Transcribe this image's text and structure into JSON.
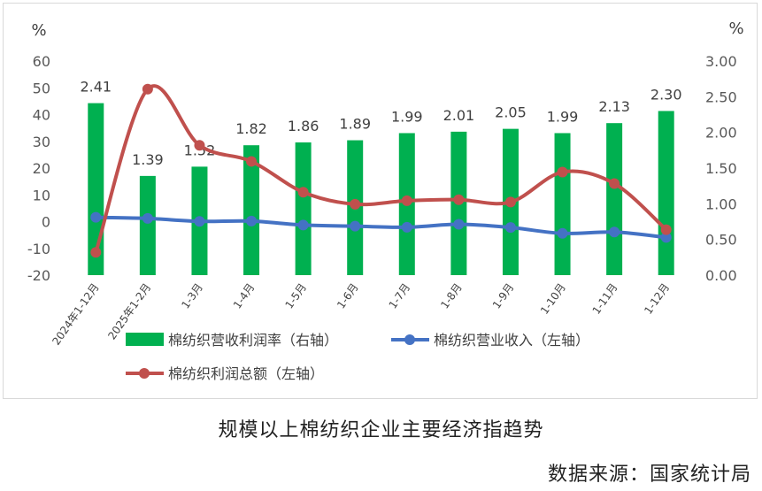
{
  "chart_data": {
    "type": "bar+line",
    "title": "",
    "categories": [
      "2024年1-12月",
      "2025年1-2月",
      "1-3月",
      "1-4月",
      "1-5月",
      "1-6月",
      "1-7月",
      "1-8月",
      "1-9月",
      "1-10月",
      "1-11月",
      "1-12月"
    ],
    "left_axis": {
      "unit": "%",
      "ylim": [
        -20,
        60
      ],
      "ticks": [
        "-20",
        "-10",
        "0",
        "10",
        "20",
        "30",
        "40",
        "50",
        "60"
      ]
    },
    "right_axis": {
      "unit": "%",
      "ylim": [
        0,
        3
      ],
      "ticks": [
        "0.00",
        "0.50",
        "1.00",
        "1.50",
        "2.00",
        "2.50",
        "3.00"
      ]
    },
    "series": [
      {
        "name": "棉纺织营收利润率（右轴）",
        "type": "bar",
        "axis": "right",
        "color": "#00b050",
        "values": [
          2.41,
          1.39,
          1.52,
          1.82,
          1.86,
          1.89,
          1.99,
          2.01,
          2.05,
          1.99,
          2.13,
          2.3
        ],
        "labels": [
          "2.41",
          "1.39",
          "1.52",
          "1.82",
          "1.86",
          "1.89",
          "1.99",
          "2.01",
          "2.05",
          "1.99",
          "2.13",
          "2.30"
        ]
      },
      {
        "name": "棉纺织营业收入（左轴）",
        "type": "line",
        "axis": "left",
        "color": "#4472c4",
        "values": [
          1.6,
          1.2,
          0.1,
          0.2,
          -1.3,
          -1.7,
          -2.1,
          -1.0,
          -2.2,
          -4.4,
          -3.9,
          -5.9
        ]
      },
      {
        "name": "棉纺织利润总额（左轴）",
        "type": "line",
        "axis": "left",
        "color": "#c0504d",
        "values": [
          -11.5,
          49.5,
          28.5,
          22.5,
          11.0,
          6.5,
          7.8,
          8.2,
          7.3,
          18.5,
          14.2,
          -3.0
        ]
      }
    ],
    "grid": false,
    "legend_position": "bottom"
  },
  "caption": "规模以上棉纺织企业主要经济指趋势",
  "source": "数据来源：国家统计局"
}
